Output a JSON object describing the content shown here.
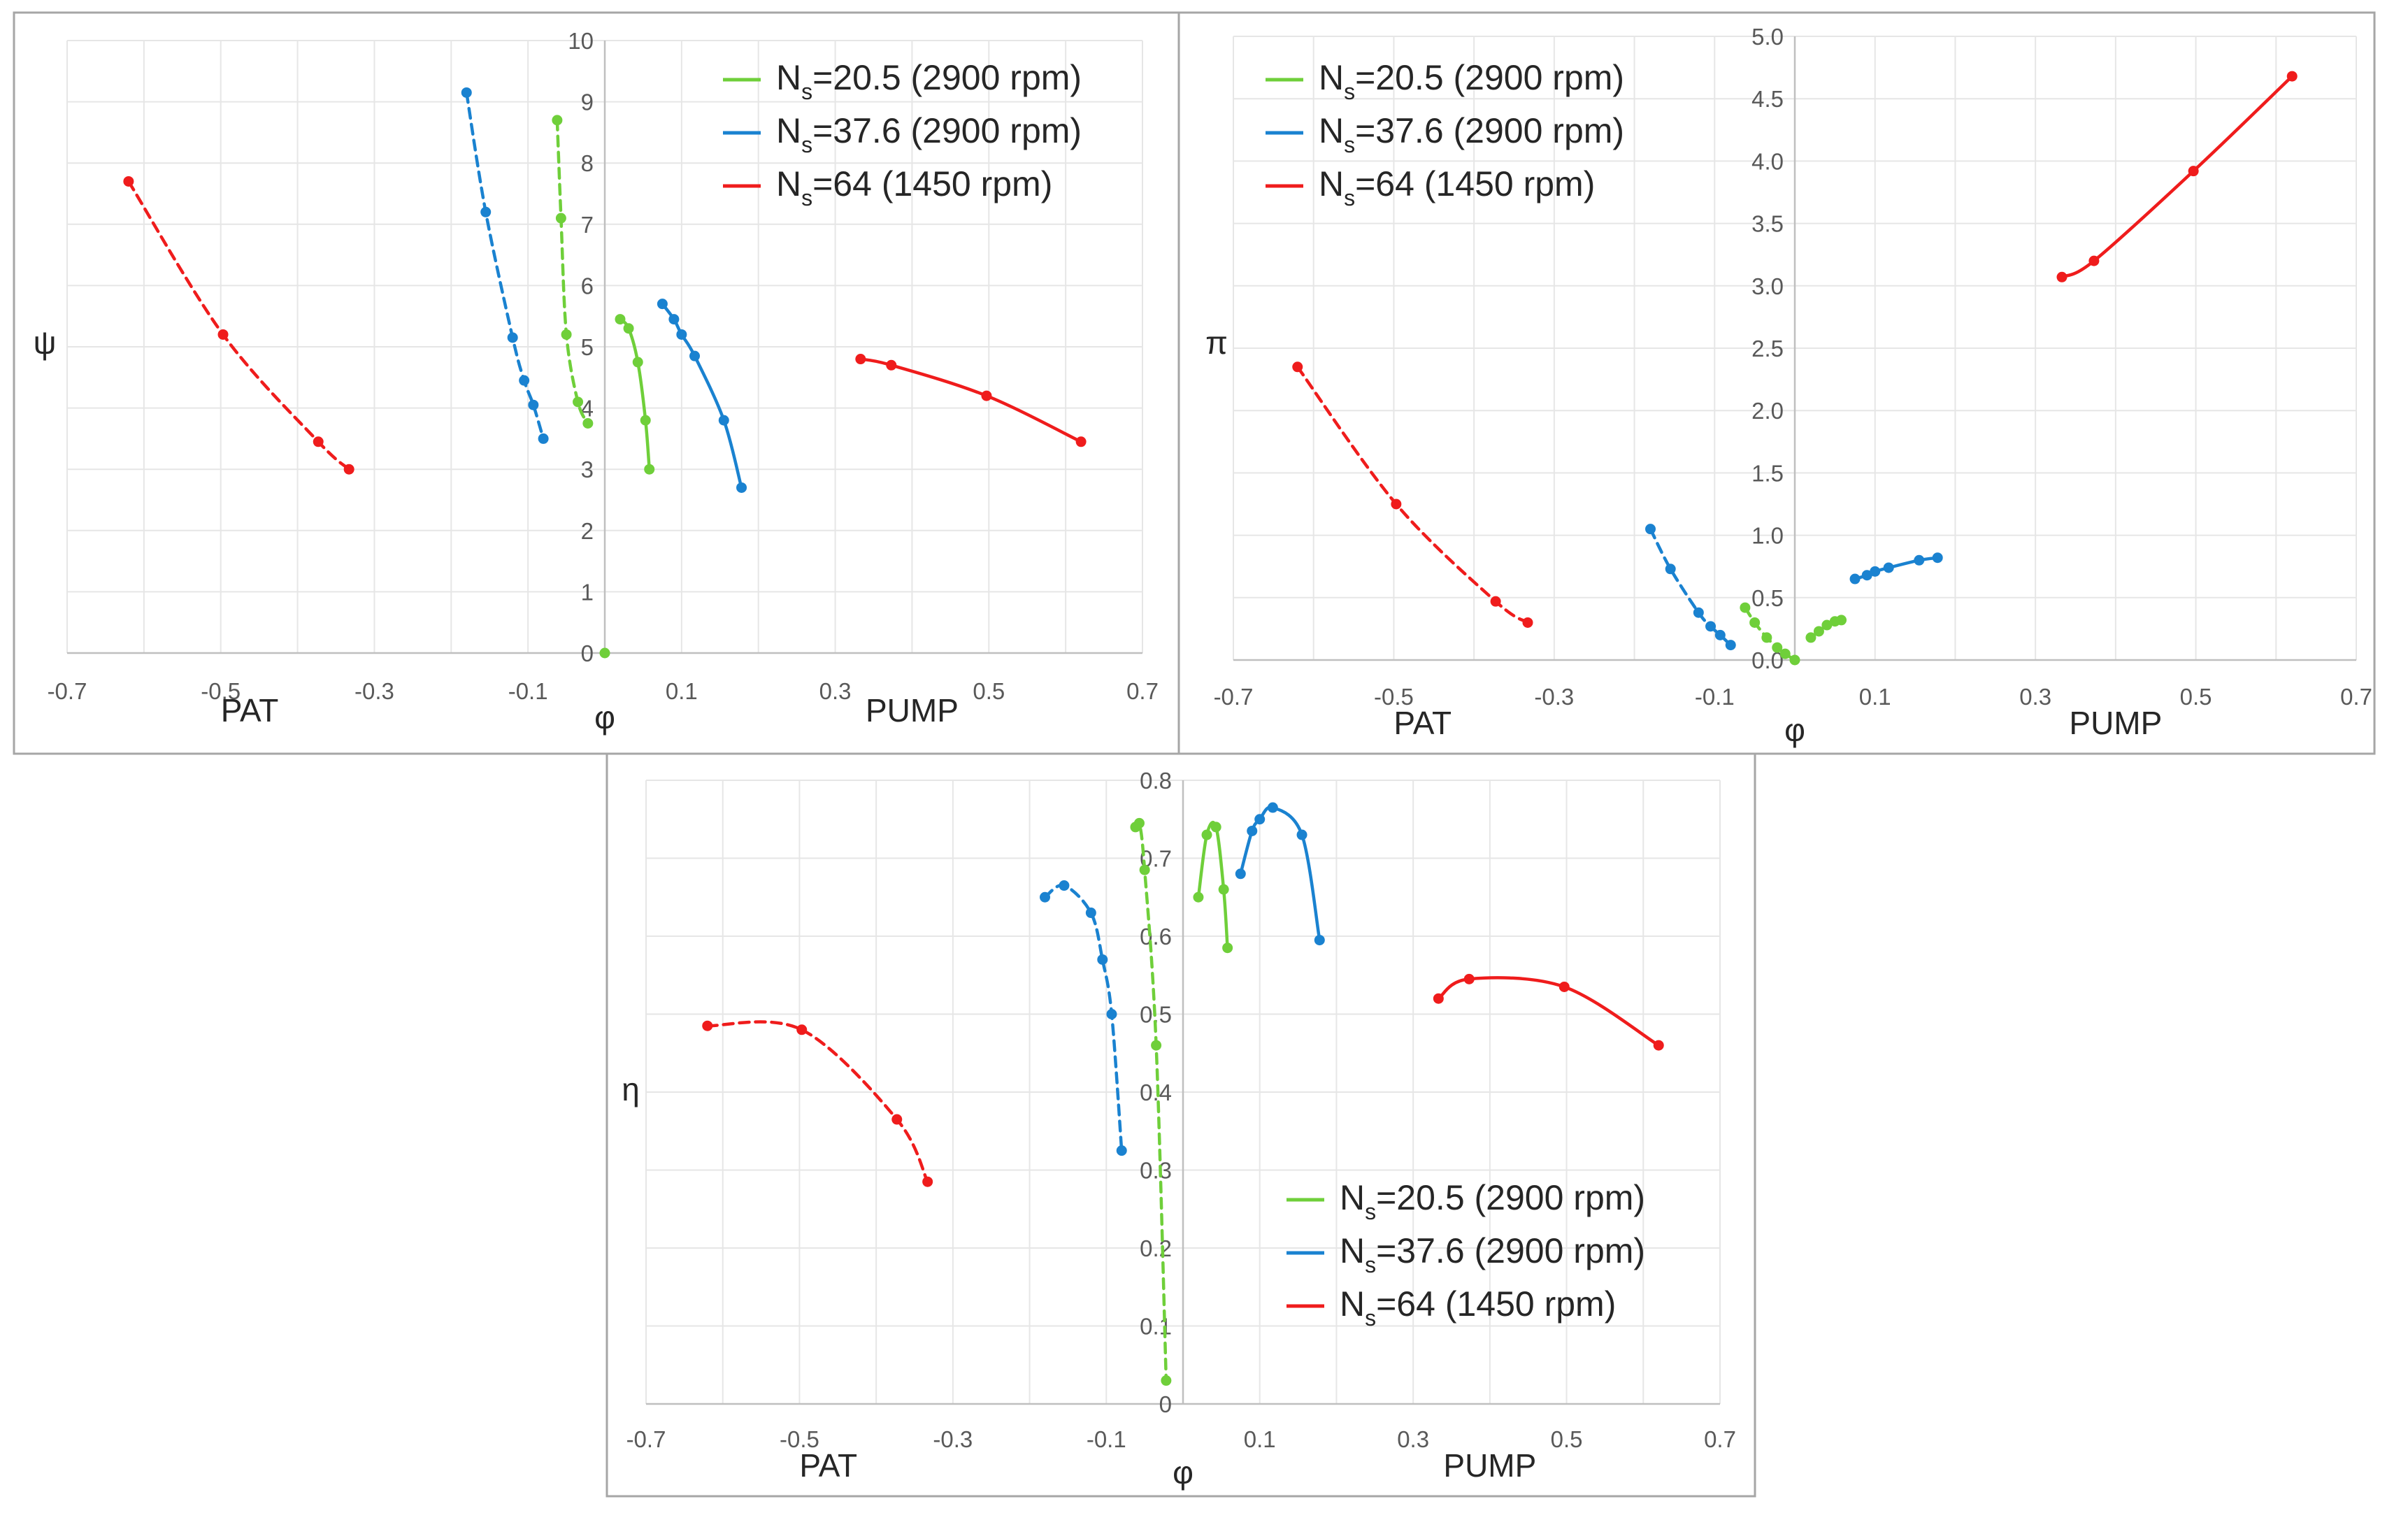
{
  "colors": {
    "green": "#6fcf3a",
    "blue": "#1a82d0",
    "red": "#ef1c1c"
  },
  "legend_entries": [
    {
      "id": "ns20",
      "pre": "N",
      "sub": "s",
      "post": "=20.5 (2900 rpm)",
      "color": "green"
    },
    {
      "id": "ns37",
      "pre": "N",
      "sub": "s",
      "post": "=37.6 (2900 rpm)",
      "color": "blue"
    },
    {
      "id": "ns64",
      "pre": "N",
      "sub": "s",
      "post": "=64 (1450 rpm)",
      "color": "red"
    }
  ],
  "chart_data": [
    {
      "id": "psi",
      "type": "line",
      "ylabel": "ψ",
      "xlabel": "φ",
      "left_label": "PAT",
      "right_label": "PUMP",
      "xlim": [
        -0.7,
        0.7
      ],
      "ylim": [
        0,
        10
      ],
      "x_ticks": [
        "-0.7",
        "-0.5",
        "-0.3",
        "-0.1",
        "0.1",
        "0.3",
        "0.5",
        "0.7"
      ],
      "y_ticks": [
        "0",
        "1",
        "2",
        "3",
        "4",
        "5",
        "6",
        "7",
        "8",
        "9",
        "10"
      ],
      "series": [
        {
          "name": "Ns=20.5 (2900 rpm) PAT",
          "color": "green",
          "dashed": true,
          "x": [
            -0.062,
            -0.057,
            -0.05,
            -0.035,
            -0.022
          ],
          "y": [
            8.7,
            7.1,
            5.2,
            4.1,
            3.75
          ]
        },
        {
          "name": "Ns=20.5 (2900 rpm) origin",
          "color": "green",
          "dashed": true,
          "x": [
            0.0
          ],
          "y": [
            0.0
          ]
        },
        {
          "name": "Ns=20.5 (2900 rpm) PUMP",
          "color": "green",
          "dashed": false,
          "x": [
            0.02,
            0.031,
            0.043,
            0.053,
            0.058
          ],
          "y": [
            5.45,
            5.3,
            4.75,
            3.8,
            3.0
          ]
        },
        {
          "name": "Ns=37.6 (2900 rpm) PAT",
          "color": "blue",
          "dashed": true,
          "x": [
            -0.18,
            -0.155,
            -0.12,
            -0.105,
            -0.093,
            -0.08
          ],
          "y": [
            9.15,
            7.2,
            5.15,
            4.45,
            4.05,
            3.5
          ]
        },
        {
          "name": "Ns=37.6 (2900 rpm) PUMP",
          "color": "blue",
          "dashed": false,
          "x": [
            0.075,
            0.09,
            0.1,
            0.117,
            0.155,
            0.178
          ],
          "y": [
            5.7,
            5.45,
            5.2,
            4.85,
            3.8,
            2.7
          ]
        },
        {
          "name": "Ns=64 (1450 rpm) PAT",
          "color": "red",
          "dashed": true,
          "x": [
            -0.62,
            -0.497,
            -0.373,
            -0.333
          ],
          "y": [
            7.7,
            5.2,
            3.45,
            3.0
          ]
        },
        {
          "name": "Ns=64 (1450 rpm) PUMP",
          "color": "red",
          "dashed": false,
          "x": [
            0.333,
            0.373,
            0.497,
            0.62
          ],
          "y": [
            4.8,
            4.7,
            4.2,
            3.45
          ]
        }
      ],
      "legend": "top-right"
    },
    {
      "id": "pi",
      "type": "line",
      "ylabel": "π",
      "xlabel": "φ",
      "left_label": "PAT",
      "right_label": "PUMP",
      "xlim": [
        -0.7,
        0.7
      ],
      "ylim": [
        0,
        5
      ],
      "x_ticks": [
        "-0.7",
        "-0.5",
        "-0.3",
        "-0.1",
        "0.1",
        "0.3",
        "0.5",
        "0.7"
      ],
      "y_ticks": [
        "0.0",
        "0.5",
        "1.0",
        "1.5",
        "2.0",
        "2.5",
        "3.0",
        "3.5",
        "4.0",
        "4.5",
        "5.0"
      ],
      "series": [
        {
          "name": "Ns=20.5 (2900 rpm) PAT",
          "color": "green",
          "dashed": true,
          "x": [
            -0.062,
            -0.05,
            -0.035,
            -0.022,
            -0.012,
            0.0
          ],
          "y": [
            0.42,
            0.3,
            0.18,
            0.1,
            0.05,
            0.0
          ]
        },
        {
          "name": "Ns=20.5 (2900 rpm) PUMP",
          "color": "green",
          "dashed": false,
          "x": [
            0.02,
            0.03,
            0.04,
            0.05,
            0.058
          ],
          "y": [
            0.18,
            0.23,
            0.28,
            0.31,
            0.32
          ]
        },
        {
          "name": "Ns=37.6 (2900 rpm) PAT",
          "color": "blue",
          "dashed": true,
          "x": [
            -0.18,
            -0.155,
            -0.12,
            -0.105,
            -0.093,
            -0.08
          ],
          "y": [
            1.05,
            0.73,
            0.38,
            0.27,
            0.2,
            0.12
          ]
        },
        {
          "name": "Ns=37.6 (2900 rpm) PUMP",
          "color": "blue",
          "dashed": false,
          "x": [
            0.075,
            0.09,
            0.1,
            0.117,
            0.155,
            0.178
          ],
          "y": [
            0.65,
            0.68,
            0.71,
            0.74,
            0.8,
            0.82
          ]
        },
        {
          "name": "Ns=64 (1450 rpm) PAT",
          "color": "red",
          "dashed": true,
          "x": [
            -0.62,
            -0.497,
            -0.373,
            -0.333
          ],
          "y": [
            2.35,
            1.25,
            0.47,
            0.3
          ]
        },
        {
          "name": "Ns=64 (1450 rpm) PUMP",
          "color": "red",
          "dashed": false,
          "x": [
            0.333,
            0.373,
            0.497,
            0.62
          ],
          "y": [
            3.07,
            3.2,
            3.92,
            4.68
          ]
        }
      ],
      "legend": "top-left"
    },
    {
      "id": "eta",
      "type": "line",
      "ylabel": "η",
      "xlabel": "φ",
      "left_label": "PAT",
      "right_label": "PUMP",
      "xlim": [
        -0.7,
        0.7
      ],
      "ylim": [
        0,
        0.8
      ],
      "x_ticks": [
        "-0.7",
        "-0.5",
        "-0.3",
        "-0.1",
        "0.1",
        "0.3",
        "0.5",
        "0.7"
      ],
      "y_ticks": [
        "0",
        "0.1",
        "0.2",
        "0.3",
        "0.4",
        "0.5",
        "0.6",
        "0.7",
        "0.8"
      ],
      "series": [
        {
          "name": "Ns=20.5 (2900 rpm) PAT",
          "color": "green",
          "dashed": true,
          "x": [
            -0.062,
            -0.057,
            -0.05,
            -0.035,
            -0.022
          ],
          "y": [
            0.74,
            0.745,
            0.685,
            0.46,
            0.03
          ]
        },
        {
          "name": "Ns=20.5 (2900 rpm) PUMP",
          "color": "green",
          "dashed": false,
          "x": [
            0.02,
            0.031,
            0.043,
            0.053,
            0.058
          ],
          "y": [
            0.65,
            0.73,
            0.74,
            0.66,
            0.585
          ]
        },
        {
          "name": "Ns=37.6 (2900 rpm) PAT",
          "color": "blue",
          "dashed": true,
          "x": [
            -0.18,
            -0.155,
            -0.12,
            -0.105,
            -0.093,
            -0.08
          ],
          "y": [
            0.65,
            0.665,
            0.63,
            0.57,
            0.5,
            0.325
          ]
        },
        {
          "name": "Ns=37.6 (2900 rpm) PUMP",
          "color": "blue",
          "dashed": false,
          "x": [
            0.075,
            0.09,
            0.1,
            0.117,
            0.155,
            0.178
          ],
          "y": [
            0.68,
            0.735,
            0.75,
            0.765,
            0.73,
            0.595
          ]
        },
        {
          "name": "Ns=64 (1450 rpm) PAT",
          "color": "red",
          "dashed": true,
          "x": [
            -0.62,
            -0.497,
            -0.373,
            -0.333
          ],
          "y": [
            0.485,
            0.48,
            0.365,
            0.285
          ]
        },
        {
          "name": "Ns=64 (1450 rpm) PUMP",
          "color": "red",
          "dashed": false,
          "x": [
            0.333,
            0.373,
            0.497,
            0.62
          ],
          "y": [
            0.52,
            0.545,
            0.535,
            0.46
          ]
        }
      ],
      "legend": "bottom-right"
    }
  ]
}
